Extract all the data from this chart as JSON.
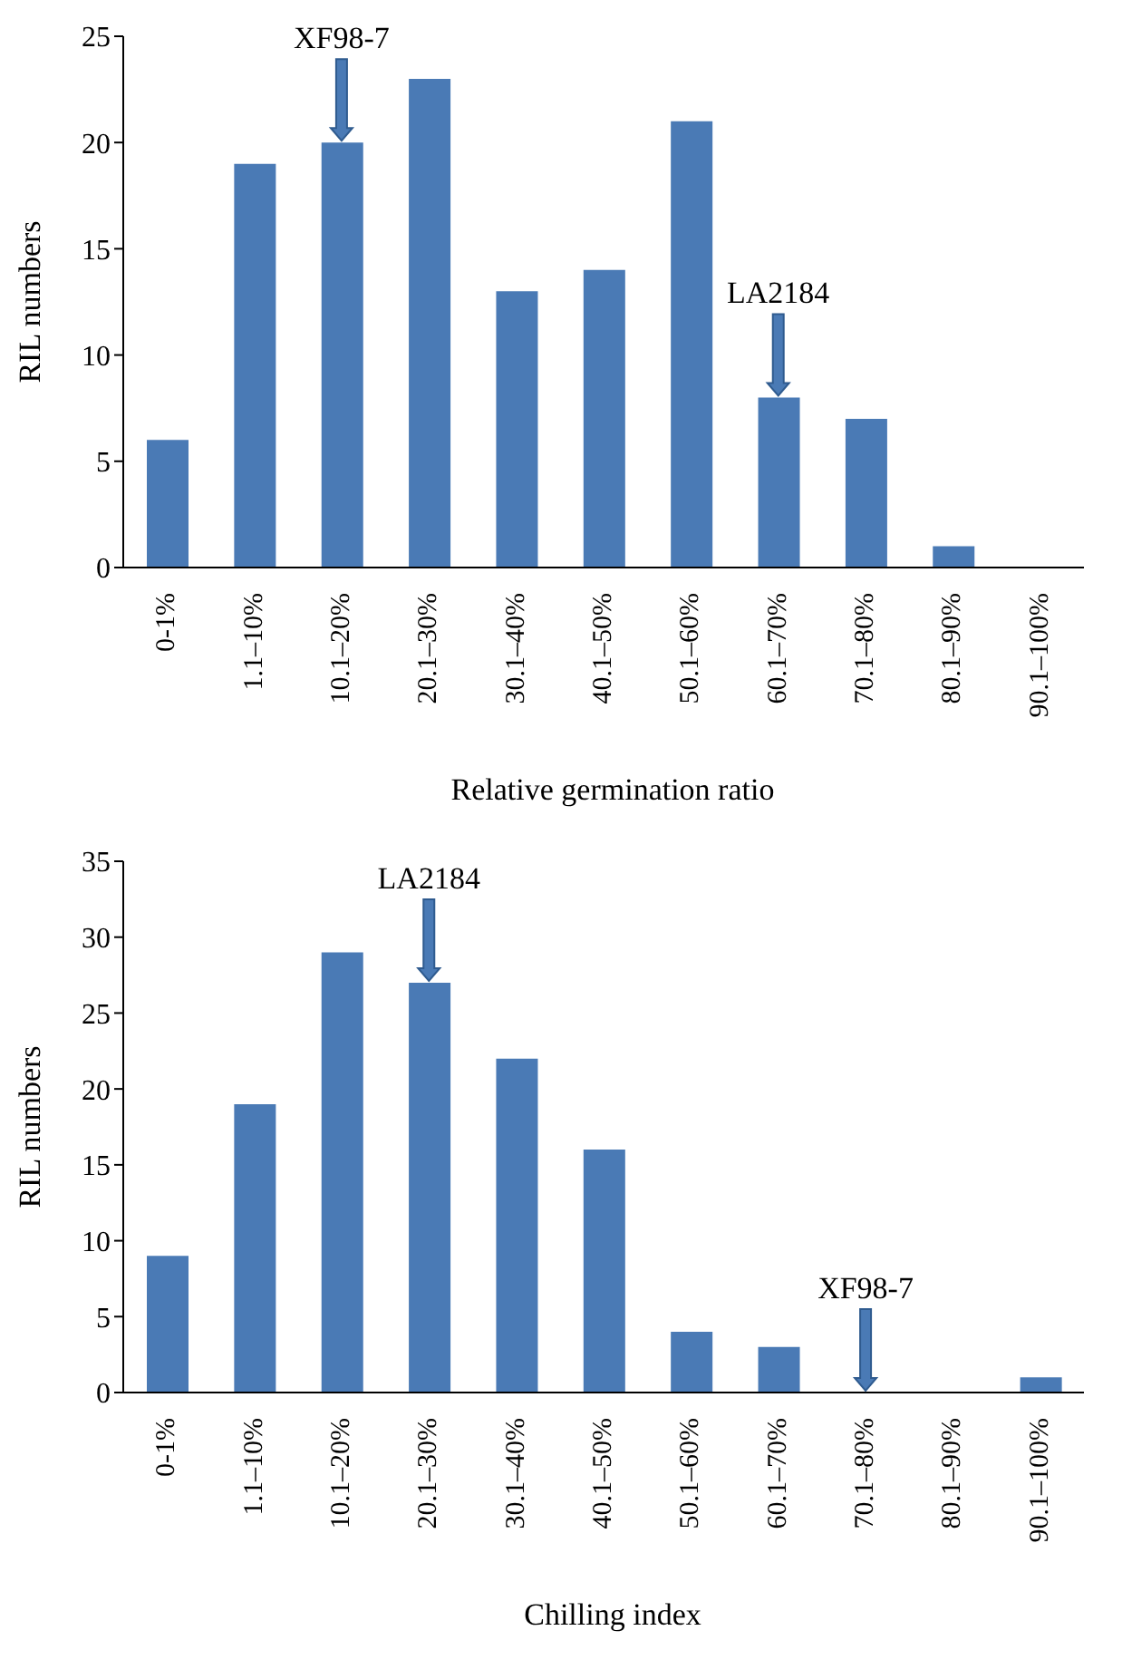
{
  "chart_data": [
    {
      "type": "bar",
      "categories": [
        "0-1%",
        "1.1–10%",
        "10.1–20%",
        "20.1–30%",
        "30.1–40%",
        "40.1–50%",
        "50.1–60%",
        "60.1–70%",
        "70.1–80%",
        "80.1–90%",
        "90.1–100%"
      ],
      "values": [
        6,
        19,
        20,
        23,
        13,
        14,
        21,
        8,
        7,
        1,
        0
      ],
      "color": "#4a7ab5",
      "xlabel": "Relative germination ratio",
      "ylabel": "RIL numbers",
      "ylim": [
        0,
        25
      ],
      "yticks": [
        0,
        5,
        10,
        15,
        20,
        25
      ],
      "grid": false,
      "legend": false,
      "annotations": [
        {
          "text": "XF98-7",
          "x": "10.1–20%",
          "y": 20
        },
        {
          "text": "LA2184",
          "x": "60.1–70%",
          "y": 8
        }
      ]
    },
    {
      "type": "bar",
      "categories": [
        "0-1%",
        "1.1–10%",
        "10.1–20%",
        "20.1–30%",
        "30.1–40%",
        "40.1–50%",
        "50.1–60%",
        "60.1–70%",
        "70.1–80%",
        "80.1–90%",
        "90.1–100%"
      ],
      "values": [
        9,
        19,
        29,
        27,
        22,
        16,
        4,
        3,
        0,
        0,
        1
      ],
      "color": "#4a7ab5",
      "xlabel": "Chilling index",
      "ylabel": "RIL numbers",
      "ylim": [
        0,
        35
      ],
      "yticks": [
        0,
        5,
        10,
        15,
        20,
        25,
        30,
        35
      ],
      "grid": false,
      "legend": false,
      "annotations": [
        {
          "text": "LA2184",
          "x": "20.1–30%",
          "y": 27
        },
        {
          "text": "XF98-7",
          "x": "70.1–80%",
          "y": 0
        }
      ]
    }
  ]
}
